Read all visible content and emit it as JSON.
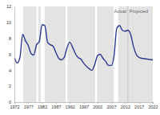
{
  "chart_data": {
    "type": "line",
    "color": "#2b3990",
    "grid": false,
    "line_style": "solid",
    "x": [
      1972,
      1973,
      1974,
      1975,
      1976,
      1977,
      1978,
      1979,
      1980,
      1981,
      1982,
      1983,
      1984,
      1985,
      1986,
      1987,
      1988,
      1989,
      1990,
      1991,
      1992,
      1993,
      1994,
      1995,
      1996,
      1997,
      1998,
      1999,
      2000,
      2001,
      2002,
      2003,
      2004,
      2005,
      2006,
      2007,
      2008,
      2009,
      2010,
      2011,
      2012,
      2013,
      2014,
      2015,
      2016,
      2017,
      2018,
      2019,
      2020,
      2021,
      2022
    ],
    "values": [
      5.6,
      4.9,
      5.6,
      8.5,
      7.7,
      7.1,
      6.1,
      5.9,
      7.2,
      7.6,
      9.7,
      9.6,
      7.5,
      7.2,
      7.0,
      6.2,
      5.5,
      5.3,
      5.6,
      6.8,
      7.5,
      6.9,
      6.1,
      5.6,
      5.4,
      4.9,
      4.5,
      4.2,
      4.0,
      4.7,
      5.8,
      6.0,
      5.5,
      5.1,
      4.6,
      4.6,
      5.8,
      9.3,
      9.6,
      9.0,
      8.9,
      9.0,
      8.5,
      7.0,
      6.0,
      5.6,
      5.5,
      5.45,
      5.4,
      5.35,
      5.3
    ],
    "xlim": [
      1972,
      2022
    ],
    "xticks": [
      1972,
      1977,
      1982,
      1987,
      1992,
      1997,
      2002,
      2007,
      2012,
      2017,
      2022
    ],
    "ylim": [
      0,
      12
    ],
    "yticks": [
      0,
      2,
      4,
      6,
      8,
      10,
      12
    ],
    "shaded_periods": [
      {
        "start": 1975.2,
        "end": 1980.0
      },
      {
        "start": 1980.6,
        "end": 1981.5
      },
      {
        "start": 1982.9,
        "end": 1990.5
      },
      {
        "start": 1991.2,
        "end": 2001.2
      },
      {
        "start": 2001.9,
        "end": 2007.9
      },
      {
        "start": 2009.5,
        "end": 2022
      }
    ],
    "projection_start": 2013,
    "annotations": [
      "Actual",
      "Projected"
    ]
  }
}
